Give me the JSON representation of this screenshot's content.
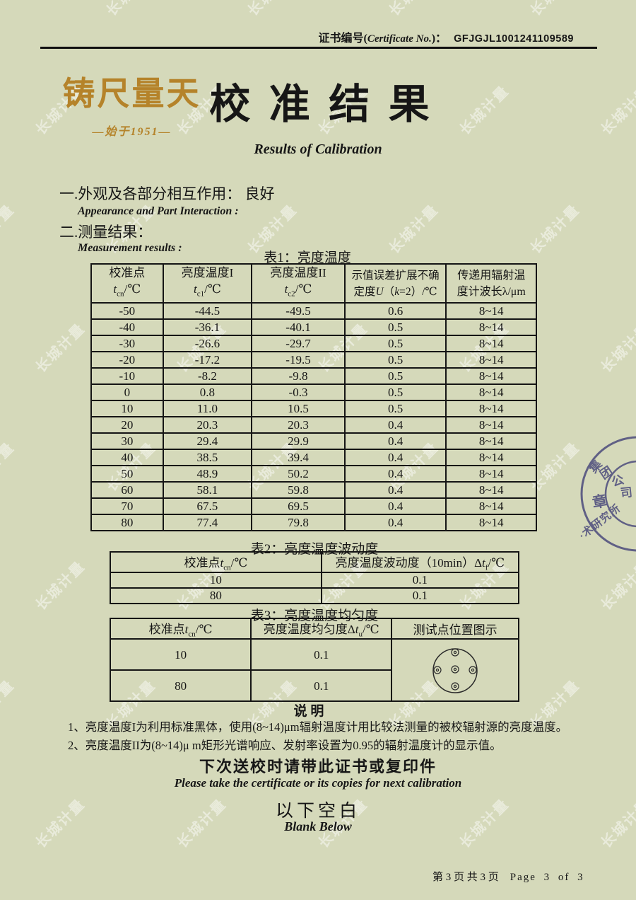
{
  "watermark": {
    "text": "长城计量"
  },
  "header": {
    "cert_pre": "证书编号(",
    "cert_en": "Certificate No.",
    "cert_post": ")：",
    "cert_no": "GFJGJL1001241109589"
  },
  "logo": {
    "name": "铸尺量天",
    "since": "—始于1951—",
    "color": "#b5832a"
  },
  "title": {
    "zh": "校 准 结 果",
    "en": "Results of Calibration"
  },
  "sections": {
    "s1_zh": "一.外观及各部分相互作用： 良好",
    "s1_en": "Appearance and Part Interaction :",
    "s2_zh": "二.测量结果：",
    "s2_en": "Measurement results :"
  },
  "table1": {
    "caption": "表1：亮度温度",
    "h1": {
      "l1": "校准点",
      "sym": "t",
      "sub": "cn",
      "unit": "/℃"
    },
    "h2": {
      "l1": "亮度温度I",
      "sym": "t",
      "sub": "c1",
      "unit": "/℃"
    },
    "h3": {
      "l1": "亮度温度II",
      "sym": "t",
      "sub": "c2",
      "unit": "/℃"
    },
    "h4": {
      "l1": "示值误差扩展不确",
      "l2a": "定度",
      "sym": "U",
      "l2b": "（",
      "k": "k",
      "l2c": "=2）/℃"
    },
    "h5": {
      "l1": "传递用辐射温",
      "l2": "度计波长λ/μm"
    },
    "rows": [
      [
        "-50",
        "-44.5",
        "-49.5",
        "0.6",
        "8~14"
      ],
      [
        "-40",
        "-36.1",
        "-40.1",
        "0.5",
        "8~14"
      ],
      [
        "-30",
        "-26.6",
        "-29.7",
        "0.5",
        "8~14"
      ],
      [
        "-20",
        "-17.2",
        "-19.5",
        "0.5",
        "8~14"
      ],
      [
        "-10",
        "-8.2",
        "-9.8",
        "0.5",
        "8~14"
      ],
      [
        "0",
        "0.8",
        "-0.3",
        "0.5",
        "8~14"
      ],
      [
        "10",
        "11.0",
        "10.5",
        "0.5",
        "8~14"
      ],
      [
        "20",
        "20.3",
        "20.3",
        "0.4",
        "8~14"
      ],
      [
        "30",
        "29.4",
        "29.9",
        "0.4",
        "8~14"
      ],
      [
        "40",
        "38.5",
        "39.4",
        "0.4",
        "8~14"
      ],
      [
        "50",
        "48.9",
        "50.2",
        "0.4",
        "8~14"
      ],
      [
        "60",
        "58.1",
        "59.8",
        "0.4",
        "8~14"
      ],
      [
        "70",
        "67.5",
        "69.5",
        "0.4",
        "8~14"
      ],
      [
        "80",
        "77.4",
        "79.8",
        "0.4",
        "8~14"
      ]
    ]
  },
  "table2": {
    "caption": "表2：亮度温度波动度",
    "h1": {
      "a": "校准点",
      "sym": "t",
      "sub": "cn",
      "unit": "/℃"
    },
    "h2": {
      "a": "亮度温度波动度（10min）Δ",
      "sym": "t",
      "sub": "f",
      "unit": "/℃"
    },
    "rows": [
      [
        "10",
        "0.1"
      ],
      [
        "80",
        "0.1"
      ]
    ]
  },
  "table3": {
    "caption": "表3：亮度温度均匀度",
    "h1": {
      "a": "校准点",
      "sym": "t",
      "sub": "cn",
      "unit": "/℃"
    },
    "h2": {
      "a": "亮度温度均匀度Δ",
      "sym": "t",
      "sub": "u",
      "unit": "/℃"
    },
    "h3": "测试点位置图示",
    "rows": [
      [
        "10",
        "0.1"
      ],
      [
        "80",
        "0.1"
      ]
    ]
  },
  "notes": {
    "heading": "说  明",
    "items": [
      "1、亮度温度I为利用标准黑体，使用(8~14)μm辐射温度计用比较法测量的被校辐射源的亮度温度。",
      "2、亮度温度II为(8~14)μ m矩形光谱响应、发射率设置为0.95的辐射温度计的显示值。"
    ]
  },
  "closing": {
    "zh": "下次送校时请带此证书或复印件",
    "en": "Please take the certificate or its copies for next calibration",
    "blank_zh": "以下空白",
    "blank_en": "Blank Below"
  },
  "footer": {
    "zh": "第 3 页 共 3 页",
    "en": "Page 3 of 3"
  },
  "stamp": {
    "color": "#50507e",
    "c1": "集",
    "c2": "团",
    "c3": "公",
    "c4": "司",
    "center": "章",
    "bottom": "·术研究所"
  }
}
